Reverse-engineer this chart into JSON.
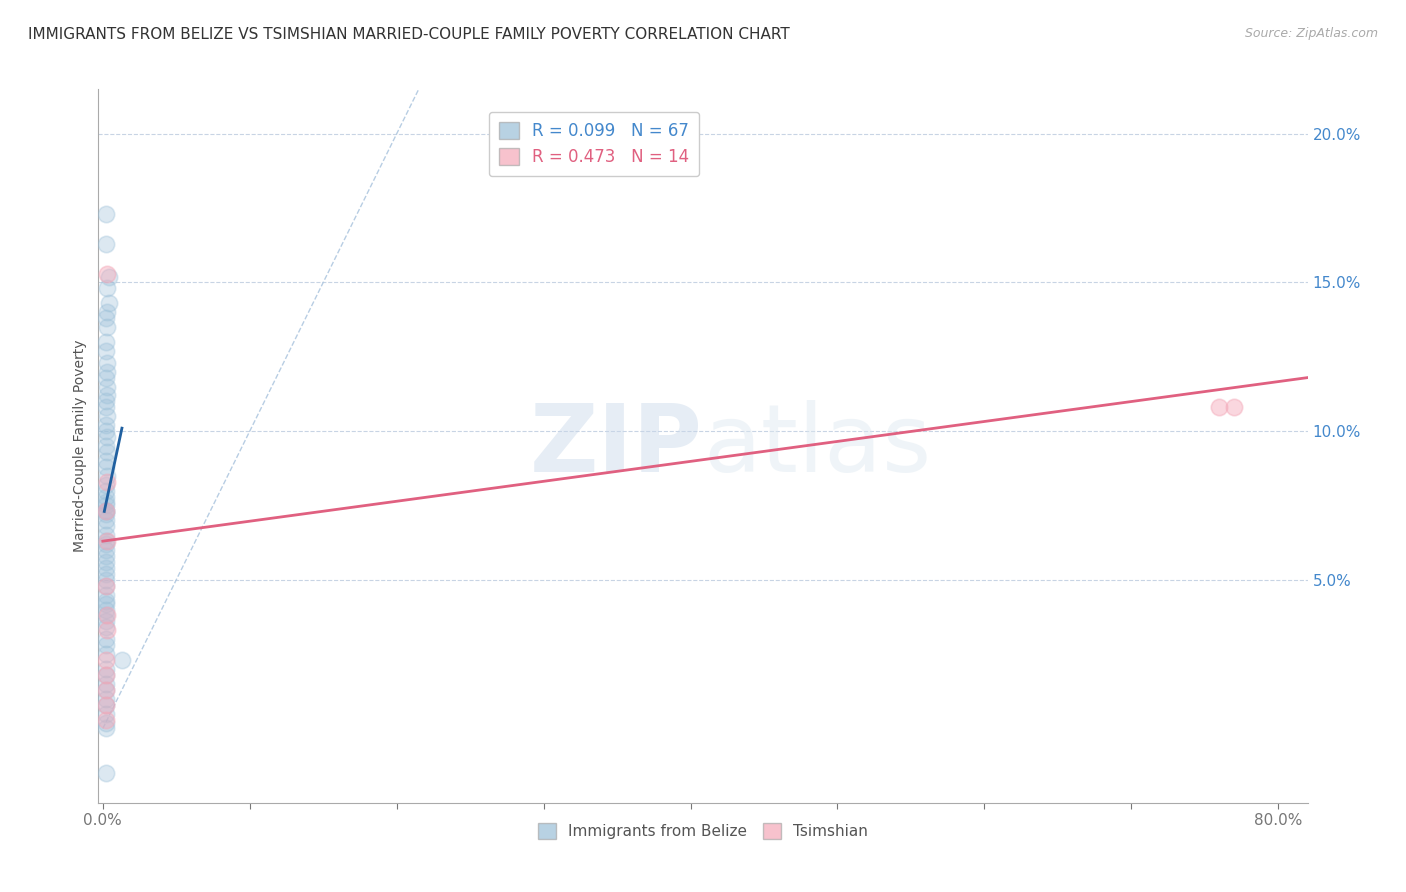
{
  "title": "IMMIGRANTS FROM BELIZE VS TSIMSHIAN MARRIED-COUPLE FAMILY POVERTY CORRELATION CHART",
  "source": "Source: ZipAtlas.com",
  "ylabel": "Married-Couple Family Poverty",
  "xlim": [
    -0.003,
    0.82
  ],
  "ylim": [
    -0.025,
    0.215
  ],
  "xticks": [
    0.0,
    0.8
  ],
  "xticklabels": [
    "0.0%",
    "80.0%"
  ],
  "yticks_right": [
    0.05,
    0.1,
    0.15,
    0.2
  ],
  "yticklabels_right": [
    "5.0%",
    "10.0%",
    "15.0%",
    "20.0%"
  ],
  "legend1_label1": "R = 0.099   N = 67",
  "legend1_label2": "R = 0.473   N = 14",
  "blue_scatter_x": [
    0.002,
    0.002,
    0.004,
    0.003,
    0.004,
    0.003,
    0.002,
    0.003,
    0.002,
    0.002,
    0.003,
    0.003,
    0.002,
    0.003,
    0.003,
    0.002,
    0.002,
    0.003,
    0.002,
    0.002,
    0.003,
    0.002,
    0.003,
    0.002,
    0.002,
    0.003,
    0.002,
    0.002,
    0.002,
    0.002,
    0.002,
    0.002,
    0.002,
    0.002,
    0.002,
    0.002,
    0.002,
    0.002,
    0.002,
    0.002,
    0.002,
    0.002,
    0.002,
    0.002,
    0.002,
    0.002,
    0.002,
    0.002,
    0.002,
    0.002,
    0.002,
    0.002,
    0.002,
    0.002,
    0.002,
    0.002,
    0.013,
    0.002,
    0.002,
    0.002,
    0.002,
    0.002,
    0.002,
    0.002,
    0.002,
    0.002,
    0.002
  ],
  "blue_scatter_y": [
    0.173,
    0.163,
    0.152,
    0.148,
    0.143,
    0.14,
    0.138,
    0.135,
    0.13,
    0.127,
    0.123,
    0.12,
    0.118,
    0.115,
    0.112,
    0.11,
    0.108,
    0.105,
    0.102,
    0.1,
    0.098,
    0.095,
    0.093,
    0.09,
    0.088,
    0.085,
    0.082,
    0.08,
    0.078,
    0.076,
    0.075,
    0.073,
    0.073,
    0.072,
    0.07,
    0.068,
    0.065,
    0.063,
    0.062,
    0.06,
    0.058,
    0.056,
    0.054,
    0.052,
    0.05,
    0.048,
    0.045,
    0.043,
    0.042,
    0.04,
    0.038,
    0.036,
    0.034,
    0.03,
    0.028,
    0.025,
    0.023,
    0.02,
    0.018,
    0.015,
    0.013,
    0.01,
    0.008,
    0.005,
    0.002,
    0.0,
    -0.015
  ],
  "pink_scatter_x": [
    0.003,
    0.003,
    0.002,
    0.003,
    0.002,
    0.003,
    0.003,
    0.002,
    0.002,
    0.002,
    0.002,
    0.002,
    0.76,
    0.77
  ],
  "pink_scatter_y": [
    0.153,
    0.083,
    0.073,
    0.063,
    0.048,
    0.038,
    0.033,
    0.023,
    0.018,
    0.013,
    0.008,
    0.003,
    0.108,
    0.108
  ],
  "blue_line_x": [
    0.001,
    0.013
  ],
  "blue_line_y": [
    0.073,
    0.101
  ],
  "pink_line_x": [
    0.0,
    0.82
  ],
  "pink_line_y": [
    0.063,
    0.118
  ],
  "ref_line_x": [
    0.0,
    0.215
  ],
  "ref_line_y": [
    0.0,
    0.215
  ],
  "blue_color": "#9bbfd8",
  "pink_color": "#f4a8b8",
  "blue_line_color": "#2060a0",
  "pink_line_color": "#e06080",
  "ref_line_color": "#b0c8e0",
  "watermark_zip": "ZIP",
  "watermark_atlas": "atlas",
  "background_color": "#ffffff",
  "grid_color": "#c8d4e4"
}
